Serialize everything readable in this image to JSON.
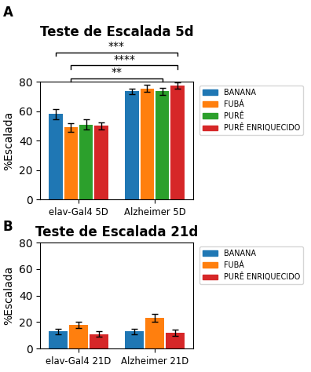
{
  "chart_data": [
    {
      "type": "bar",
      "panel_label": "A",
      "title": "Teste de Escalada 5d",
      "y_label": "%Escalada",
      "categories": [
        "elav-Gal4 5D",
        "Alzheimer 5D"
      ],
      "series": [
        {
          "name": "BANANA",
          "values": [
            58,
            73.5
          ],
          "errors": [
            3.5,
            2.0
          ]
        },
        {
          "name": "FUBÁ",
          "values": [
            49,
            75.5
          ],
          "errors": [
            3.0,
            2.5
          ]
        },
        {
          "name": "PURÊ",
          "values": [
            51,
            73.5
          ],
          "errors": [
            3.5,
            2.5
          ]
        },
        {
          "name": "PURÊ ENRIQUECIDO",
          "values": [
            50,
            77.5
          ],
          "errors": [
            2.5,
            2.0
          ]
        }
      ],
      "ylim": [
        0,
        80
      ],
      "yticks": [
        0,
        20,
        40,
        60,
        80
      ],
      "legend": "right",
      "annotations": [
        {
          "text": "***",
          "from": {
            "category": "elav-Gal4 5D",
            "series": "BANANA"
          },
          "to": {
            "category": "Alzheimer 5D",
            "series": "PURÊ ENRIQUECIDO"
          }
        },
        {
          "text": "****",
          "from": {
            "category": "elav-Gal4 5D",
            "series": "FUBÁ"
          },
          "to": {
            "category": "Alzheimer 5D",
            "series": "PURÊ ENRIQUECIDO"
          }
        },
        {
          "text": "**",
          "from": {
            "category": "elav-Gal4 5D",
            "series": "FUBÁ"
          },
          "to": {
            "category": "Alzheimer 5D",
            "series": "PURÊ"
          }
        }
      ]
    },
    {
      "type": "bar",
      "panel_label": "B",
      "title": "Teste de Escalada 21d",
      "y_label": "%Escalada",
      "categories": [
        "elav-Gal4 21D",
        "Alzheimer 21D"
      ],
      "series": [
        {
          "name": "BANANA",
          "values": [
            13,
            13
          ],
          "errors": [
            2.0,
            2.0
          ]
        },
        {
          "name": "FUBÁ",
          "values": [
            18,
            23
          ],
          "errors": [
            2.5,
            3.0
          ]
        },
        {
          "name": "PURÊ ENRIQUECIDO",
          "values": [
            11,
            12
          ],
          "errors": [
            2.0,
            2.5
          ]
        }
      ],
      "ylim": [
        0,
        80
      ],
      "yticks": [
        0,
        20,
        40,
        60,
        80
      ],
      "legend": "right"
    }
  ]
}
